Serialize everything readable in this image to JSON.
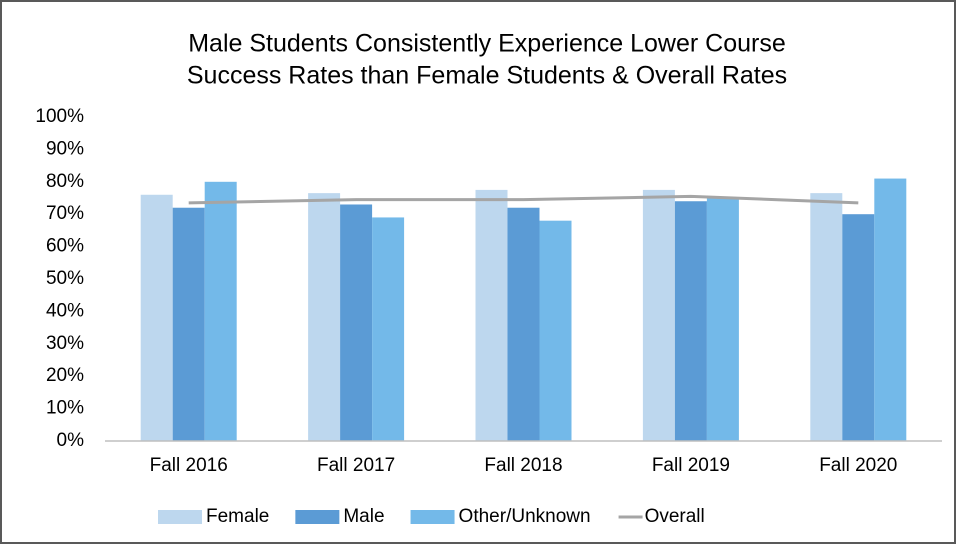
{
  "chart_data": {
    "type": "bar",
    "title": [
      "Male Students Consistently Experience Lower Course",
      "Success Rates than Female Students & Overall Rates"
    ],
    "categories": [
      "Fall 2016",
      "Fall 2017",
      "Fall 2018",
      "Fall 2019",
      "Fall 2020"
    ],
    "series": [
      {
        "name": "Female",
        "color": "#bdd7ee",
        "values": [
          76,
          76.5,
          77.5,
          77.5,
          76.5
        ]
      },
      {
        "name": "Male",
        "color": "#5b9bd5",
        "values": [
          72,
          73,
          72,
          74,
          70
        ]
      },
      {
        "name": "Other/Unknown",
        "color": "#73b9e9",
        "values": [
          80,
          69,
          68,
          75,
          81
        ]
      },
      {
        "name": "Overall",
        "type": "line",
        "color": "#a5a5a5",
        "values": [
          73.5,
          74.5,
          74.5,
          75.5,
          73.5
        ]
      }
    ],
    "ylim": [
      0,
      100
    ],
    "yticks": [
      {
        "value": 0,
        "label": "0%"
      },
      {
        "value": 10,
        "label": "10%"
      },
      {
        "value": 20,
        "label": "20%"
      },
      {
        "value": 30,
        "label": "30%"
      },
      {
        "value": 40,
        "label": "40%"
      },
      {
        "value": 50,
        "label": "50%"
      },
      {
        "value": 60,
        "label": "60%"
      },
      {
        "value": 70,
        "label": "70%"
      },
      {
        "value": 80,
        "label": "80%"
      },
      {
        "value": 90,
        "label": "90%"
      },
      {
        "value": 100,
        "label": "100%"
      }
    ],
    "grid": false,
    "legend": "bottom"
  }
}
